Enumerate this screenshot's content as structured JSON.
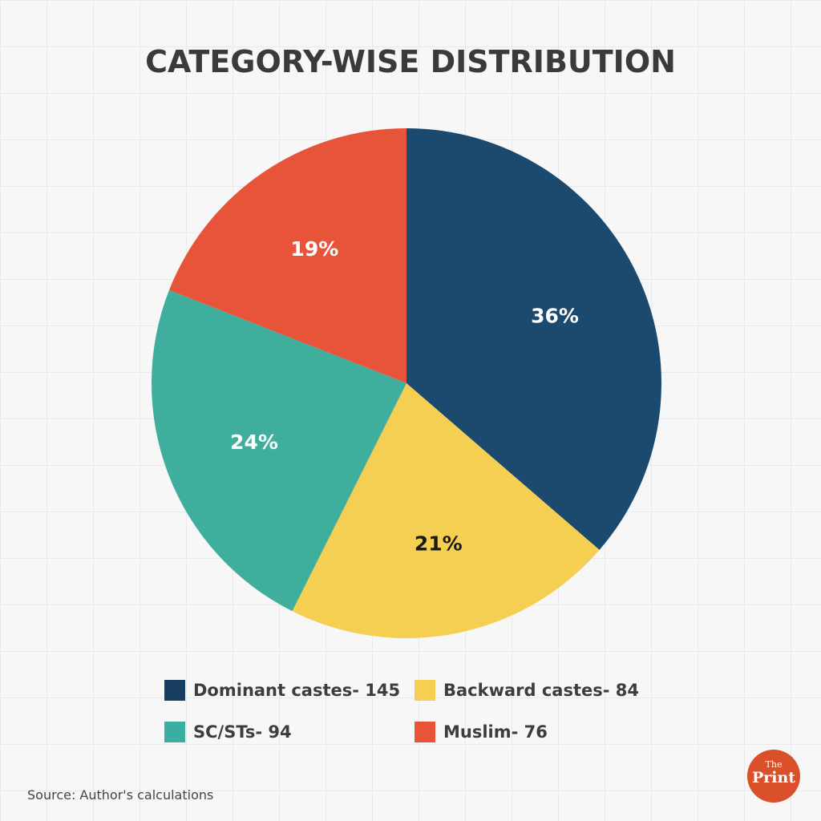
{
  "chart_data": {
    "type": "pie",
    "title": "CATEGORY-WISE DISTRIBUTION",
    "start": "12 o'clock, clockwise",
    "slices": [
      {
        "name": "Dominant castes",
        "value": 145,
        "label": "36%",
        "color": "#1b4a6e",
        "legend": "Dominant castes- 145",
        "label_color": "#ffffff"
      },
      {
        "name": "Backward castes",
        "value": 84,
        "label": "21%",
        "color": "#f4cf52",
        "legend": "Backward castes- 84",
        "label_color": "#1a1a1a"
      },
      {
        "name": "SC/STs",
        "value": 94,
        "label": "24%",
        "color": "#3fae9c",
        "legend": "SC/STs- 94",
        "label_color": "#ffffff"
      },
      {
        "name": "Muslim",
        "value": 76,
        "label": "19%",
        "color": "#e8543a",
        "legend": "Muslim- 76",
        "label_color": "#ffffff"
      }
    ],
    "legend_placement": "bottom"
  },
  "source": "Source: Author's calculations",
  "logo": {
    "top": "The",
    "bottom": "Print"
  }
}
